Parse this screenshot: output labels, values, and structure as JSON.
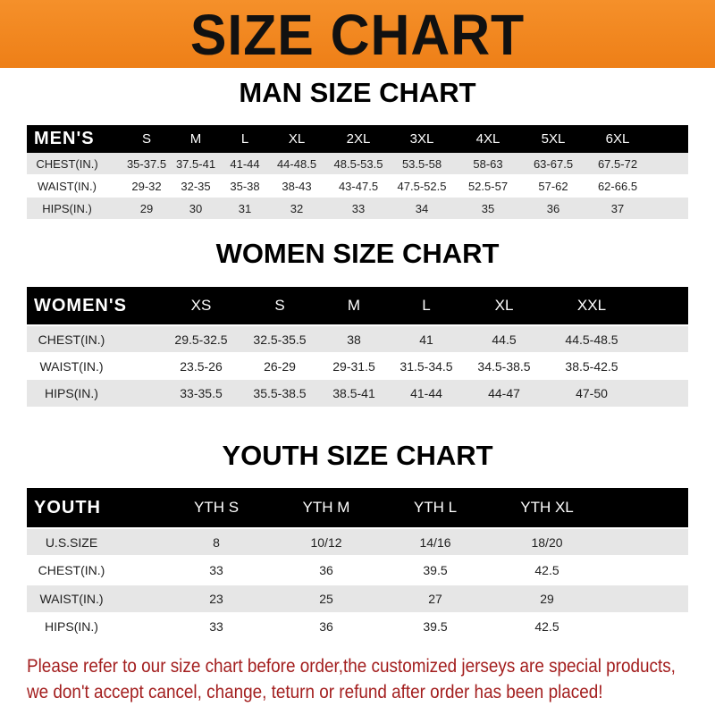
{
  "banner": {
    "title": "SIZE CHART",
    "color": "#f08a1e"
  },
  "men": {
    "title": "MAN SIZE CHART",
    "header": [
      "MEN'S",
      "S",
      "M",
      "L",
      "XL",
      "2XL",
      "3XL",
      "4XL",
      "5XL",
      "6XL"
    ],
    "rows": [
      [
        "CHEST(IN.)",
        "35-37.5",
        "37.5-41",
        "41-44",
        "44-48.5",
        "48.5-53.5",
        "53.5-58",
        "58-63",
        "63-67.5",
        "67.5-72"
      ],
      [
        "WAIST(IN.)",
        "29-32",
        "32-35",
        "35-38",
        "38-43",
        "43-47.5",
        "47.5-52.5",
        "52.5-57",
        "57-62",
        "62-66.5"
      ],
      [
        "HIPS(IN.)",
        "29",
        "30",
        "31",
        "32",
        "33",
        "34",
        "35",
        "36",
        "37"
      ]
    ]
  },
  "women": {
    "title": "WOMEN SIZE CHART",
    "header": [
      "WOMEN'S",
      "XS",
      "S",
      "M",
      "L",
      "XL",
      "XXL"
    ],
    "rows": [
      [
        "CHEST(IN.)",
        "29.5-32.5",
        "32.5-35.5",
        "38",
        "41",
        "44.5",
        "44.5-48.5"
      ],
      [
        "WAIST(IN.)",
        "23.5-26",
        "26-29",
        "29-31.5",
        "31.5-34.5",
        "34.5-38.5",
        "38.5-42.5"
      ],
      [
        "HIPS(IN.)",
        "33-35.5",
        "35.5-38.5",
        "38.5-41",
        "41-44",
        "44-47",
        "47-50"
      ]
    ]
  },
  "youth": {
    "title": "YOUTH SIZE CHART",
    "header": [
      "YOUTH",
      "YTH S",
      "YTH M",
      "YTH L",
      "YTH XL"
    ],
    "rows": [
      [
        "U.S.SIZE",
        "8",
        "10/12",
        "14/16",
        "18/20"
      ],
      [
        "CHEST(IN.)",
        "33",
        "36",
        "39.5",
        "42.5"
      ],
      [
        "WAIST(IN.)",
        "23",
        "25",
        "27",
        "29"
      ],
      [
        "HIPS(IN.)",
        "33",
        "36",
        "39.5",
        "42.5"
      ]
    ]
  },
  "notice": {
    "line1": "Please refer to our size chart before order,the customized jerseys are special products,",
    "line2": "we don't accept cancel, change, teturn or refund after order has been placed!",
    "color": "#a31e1e"
  }
}
